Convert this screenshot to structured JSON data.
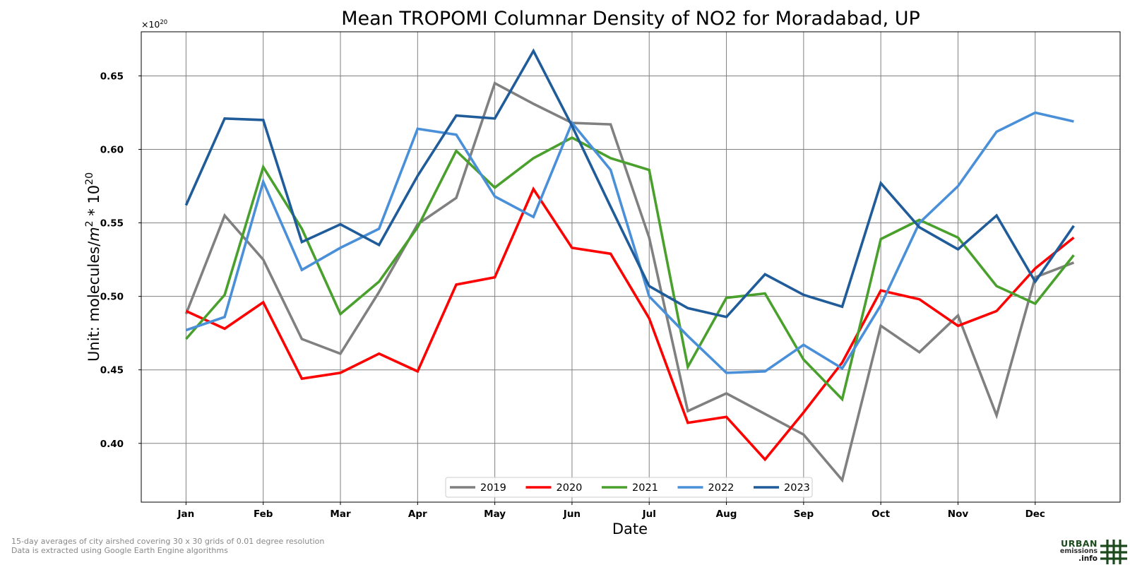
{
  "chart_data": {
    "type": "line",
    "title": "Mean TROPOMI Columnar Density of NO2 for Moradabad, UP",
    "xlabel": "Date",
    "ylabel": "Unit: molecules/m² * 10²⁰",
    "ylabel_parts": {
      "prefix": "Unit: molecules/",
      "m": "m",
      "exp2": "2",
      "mid": " * 10",
      "exp20": "20"
    },
    "offset_text": {
      "base": "×10",
      "exp": "20"
    },
    "ylim": [
      0.36,
      0.68
    ],
    "yticks": [
      0.4,
      0.45,
      0.5,
      0.55,
      0.6,
      0.65
    ],
    "ytick_labels": [
      "0.40",
      "0.45",
      "0.50",
      "0.55",
      "0.60",
      "0.65"
    ],
    "xlim": [
      -0.58,
      12.1
    ],
    "xticks": [
      0,
      1,
      2,
      3,
      4,
      5,
      6,
      7,
      8,
      9,
      10,
      11
    ],
    "xtick_labels": [
      "Jan",
      "Feb",
      "Mar",
      "Apr",
      "May",
      "Jun",
      "Jul",
      "Aug",
      "Sep",
      "Oct",
      "Nov",
      "Dec"
    ],
    "x": [
      0,
      0.5,
      1,
      1.5,
      2,
      2.5,
      3,
      3.5,
      4,
      4.5,
      5,
      5.5,
      6,
      6.5,
      7,
      7.5,
      8,
      8.5,
      9,
      9.5,
      10,
      10.5,
      11,
      11.5
    ],
    "grid": true,
    "legend_position": "lower center",
    "series": [
      {
        "name": "2019",
        "color": "#808080",
        "values": [
          0.488,
          0.555,
          0.525,
          0.471,
          0.461,
          0.503,
          0.549,
          0.567,
          0.645,
          0.631,
          0.618,
          0.617,
          0.54,
          0.422,
          0.434,
          0.42,
          0.406,
          0.375,
          0.48,
          0.462,
          0.487,
          0.419,
          0.513,
          0.523
        ]
      },
      {
        "name": "2020",
        "color": "#ff0000",
        "values": [
          0.49,
          0.478,
          0.496,
          0.444,
          0.448,
          0.461,
          0.449,
          0.508,
          0.513,
          0.573,
          0.533,
          0.529,
          0.485,
          0.414,
          0.418,
          0.389,
          0.421,
          0.455,
          0.504,
          0.498,
          0.48,
          0.49,
          0.519,
          0.54
        ]
      },
      {
        "name": "2021",
        "color": "#4aa02c",
        "values": [
          0.471,
          0.501,
          0.588,
          0.546,
          0.488,
          0.51,
          0.547,
          0.599,
          0.574,
          0.594,
          0.608,
          0.594,
          0.586,
          0.452,
          0.499,
          0.502,
          0.457,
          0.43,
          0.539,
          0.552,
          0.54,
          0.507,
          0.495,
          0.528
        ]
      },
      {
        "name": "2022",
        "color": "#4a90d9",
        "values": [
          0.477,
          0.486,
          0.578,
          0.518,
          0.533,
          0.546,
          0.614,
          0.61,
          0.568,
          0.554,
          0.618,
          0.586,
          0.5,
          0.473,
          0.448,
          0.449,
          0.467,
          0.451,
          0.494,
          0.55,
          0.575,
          0.612,
          0.625,
          0.619
        ]
      },
      {
        "name": "2023",
        "color": "#1f5c99",
        "values": [
          0.562,
          0.621,
          0.62,
          0.537,
          0.549,
          0.535,
          0.582,
          0.623,
          0.621,
          0.667,
          0.616,
          0.561,
          0.507,
          0.492,
          0.486,
          0.515,
          0.501,
          0.493,
          0.577,
          0.547,
          0.532,
          0.555,
          0.51,
          0.548
        ]
      }
    ]
  },
  "footnote": {
    "line1": "15-day averages of city airshed covering 30 x 30 grids of 0.01 degree resolution",
    "line2": "Data is extracted using Google Earth Engine algorithms"
  },
  "logo": {
    "line1": "URBAN",
    "line2": "emissions",
    "line3": ".info",
    "color": "#1d4a1d"
  }
}
